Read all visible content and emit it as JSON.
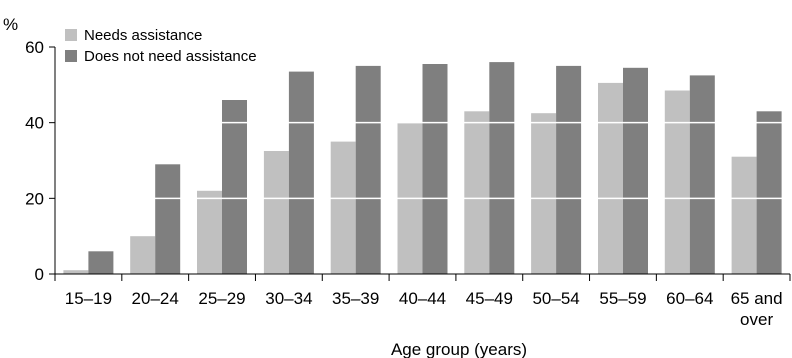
{
  "chart_data": {
    "type": "bar",
    "title": "",
    "ylabel": "%",
    "xlabel": "Age group (years)",
    "ylim": [
      0,
      60
    ],
    "yticks": [
      0,
      20,
      40,
      60
    ],
    "categories": [
      [
        "15–19"
      ],
      [
        "20–24"
      ],
      [
        "25–29"
      ],
      [
        "30–34"
      ],
      [
        "35–39"
      ],
      [
        "40–44"
      ],
      [
        "45–49"
      ],
      [
        "50–54"
      ],
      [
        "55–59"
      ],
      [
        "60–64"
      ],
      [
        "65 and",
        "over"
      ]
    ],
    "series": [
      {
        "name": "Needs assistance",
        "color": "#c0c0c0",
        "values": [
          1,
          10,
          22,
          32.5,
          35,
          40,
          43,
          42.5,
          50.5,
          48.5,
          31
        ]
      },
      {
        "name": "Does not need assistance",
        "color": "#7f7f7f",
        "values": [
          6,
          29,
          46,
          53.5,
          55,
          55.5,
          56,
          55,
          54.5,
          52.5,
          43
        ]
      }
    ],
    "grid": "white horizontal lines over bars",
    "legend": "top-left"
  }
}
